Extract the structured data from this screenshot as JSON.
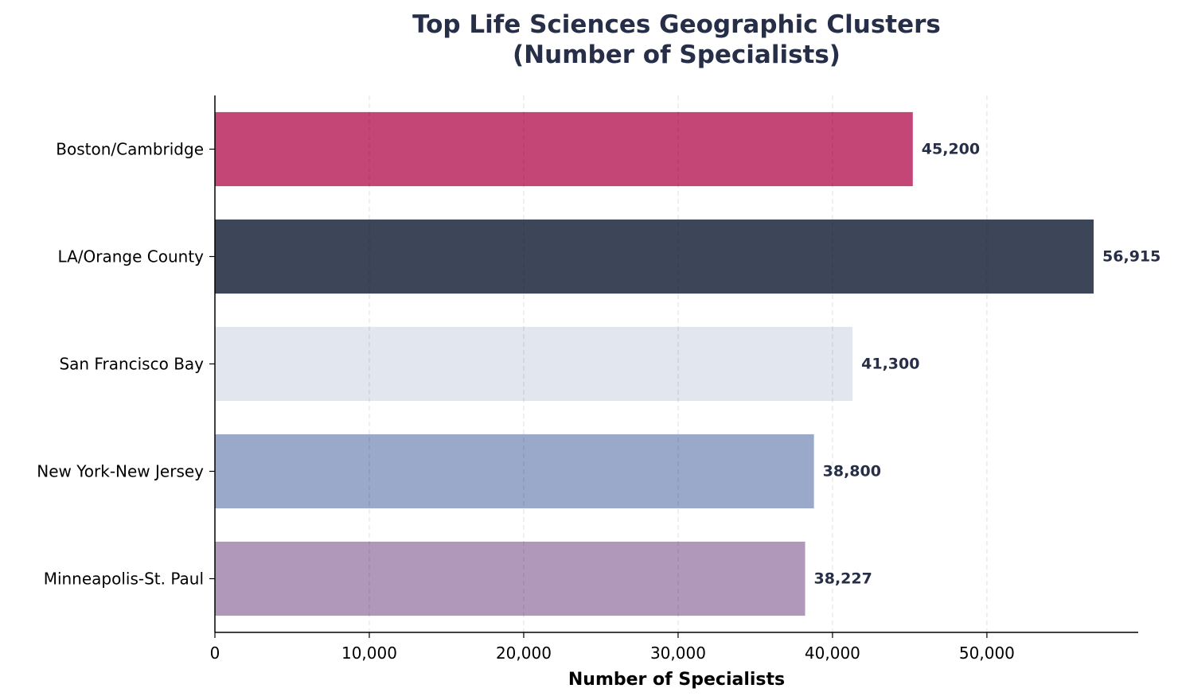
{
  "chart_data": {
    "type": "bar",
    "orientation": "horizontal",
    "title": [
      "Top Life Sciences Geographic Clusters",
      "(Number of Specialists)"
    ],
    "xlabel": "Number of Specialists",
    "ylabel": "",
    "categories": [
      "Boston/Cambridge",
      "LA/Orange County",
      "San Francisco Bay",
      "New York-New Jersey",
      "Minneapolis-St. Paul"
    ],
    "values": [
      45200,
      56915,
      41300,
      38800,
      38227
    ],
    "value_labels": [
      "45,200",
      "56,915",
      "41,300",
      "38,800",
      "38,227"
    ],
    "colors": [
      "#c44677",
      "#3d4659",
      "#e2e6ef",
      "#9aa9c9",
      "#b098bb"
    ],
    "xlim": [
      0,
      59800
    ],
    "xticks": [
      0,
      10000,
      20000,
      30000,
      40000,
      50000
    ],
    "xtick_labels": [
      "0",
      "10,000",
      "20,000",
      "30,000",
      "40,000",
      "50,000"
    ],
    "grid": "x-dashed",
    "legend": "none"
  }
}
